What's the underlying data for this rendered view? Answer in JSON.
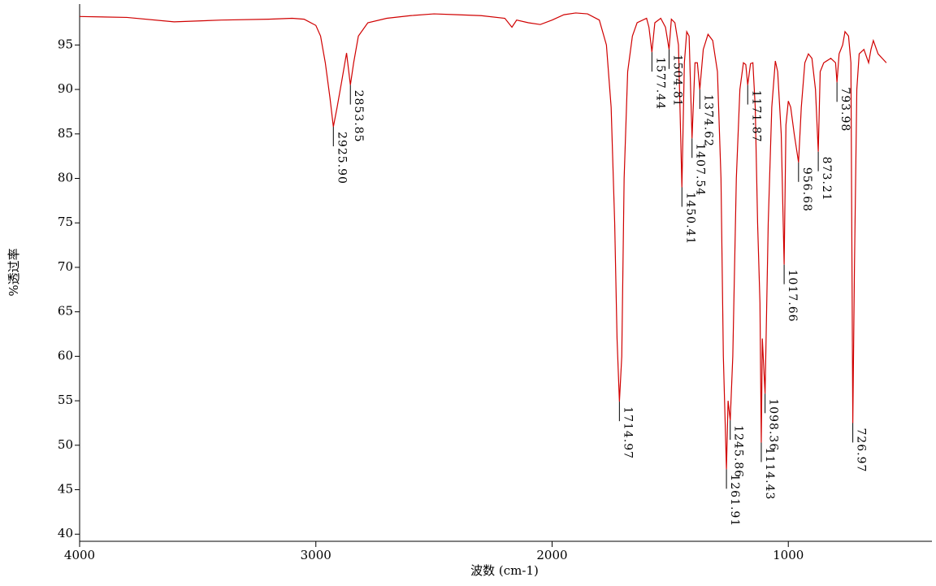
{
  "chart_data": {
    "type": "line",
    "xlabel": "波数 (cm-1)",
    "ylabel": "%透过率",
    "xlim": [
      4000,
      392
    ],
    "ylim": [
      39.2,
      99.6
    ],
    "xticks": [
      4000,
      3000,
      2000,
      1000
    ],
    "yticks": [
      40,
      45,
      50,
      55,
      60,
      65,
      70,
      75,
      80,
      85,
      90,
      95
    ],
    "color": "#d00000",
    "x": [
      4000,
      3800,
      3600,
      3400,
      3200,
      3100,
      3050,
      3000,
      2980,
      2960,
      2940,
      2925.9,
      2910,
      2890,
      2870,
      2853.85,
      2840,
      2820,
      2780,
      2700,
      2600,
      2500,
      2400,
      2300,
      2200,
      2170,
      2150,
      2100,
      2050,
      2000,
      1950,
      1900,
      1850,
      1800,
      1770,
      1750,
      1735,
      1725,
      1714.97,
      1705,
      1695,
      1680,
      1660,
      1640,
      1600,
      1590,
      1577.44,
      1565,
      1540,
      1520,
      1504.81,
      1495,
      1480,
      1465,
      1450.41,
      1440,
      1430,
      1420,
      1407.54,
      1395,
      1385,
      1374.62,
      1360,
      1340,
      1320,
      1300,
      1285,
      1275,
      1261.91,
      1255,
      1245.86,
      1235,
      1220,
      1205,
      1190,
      1180,
      1171.87,
      1160,
      1150,
      1140,
      1130,
      1120,
      1114.43,
      1110,
      1098.36,
      1085,
      1070,
      1055,
      1045,
      1030,
      1017.66,
      1010,
      1000,
      990,
      975,
      956.68,
      945,
      930,
      915,
      900,
      885,
      873.21,
      865,
      850,
      820,
      800,
      793.98,
      785,
      770,
      760,
      745,
      735,
      726.97,
      720,
      710,
      700,
      680,
      660,
      650,
      640,
      620,
      585
    ],
    "values": [
      98.2,
      98.1,
      97.6,
      97.8,
      97.9,
      98.0,
      97.9,
      97.2,
      96.0,
      93,
      89,
      85.8,
      88,
      91,
      94.1,
      90.5,
      93,
      96,
      97.5,
      98.0,
      98.3,
      98.5,
      98.4,
      98.3,
      98.0,
      97.0,
      97.8,
      97.5,
      97.3,
      97.8,
      98.4,
      98.6,
      98.5,
      97.8,
      95,
      88,
      75,
      62,
      54.9,
      60,
      80,
      92,
      96,
      97.5,
      98.0,
      97,
      94.2,
      97.5,
      98.0,
      97,
      94.5,
      97.9,
      97.5,
      95,
      79.0,
      93,
      96.5,
      96,
      84.5,
      93,
      93,
      90,
      94.5,
      96.2,
      95.5,
      92,
      80,
      60,
      47.3,
      55,
      52.8,
      60,
      80,
      90,
      93,
      92.8,
      90.5,
      92.9,
      93,
      88,
      75,
      66,
      50.3,
      62,
      55.8,
      75,
      88,
      93.2,
      92,
      85,
      70.3,
      86,
      88.7,
      88,
      85,
      81.8,
      88,
      93,
      94,
      93.5,
      90,
      83.0,
      92,
      93,
      93.5,
      93,
      90.8,
      94,
      95,
      96.5,
      96,
      93,
      52.5,
      70,
      90,
      94,
      94.5,
      93,
      94.5,
      95.5,
      94,
      93.0
    ],
    "peaks": [
      {
        "x": 2925.9,
        "y": 85.8,
        "label": "2925.90"
      },
      {
        "x": 2853.85,
        "y": 90.5,
        "label": "2853.85"
      },
      {
        "x": 1714.97,
        "y": 54.9,
        "label": "1714.97"
      },
      {
        "x": 1577.44,
        "y": 94.2,
        "label": "1577.44"
      },
      {
        "x": 1504.81,
        "y": 94.5,
        "label": "1504.81"
      },
      {
        "x": 1450.41,
        "y": 79.0,
        "label": "1450.41"
      },
      {
        "x": 1407.54,
        "y": 84.5,
        "label": "1407.54"
      },
      {
        "x": 1374.62,
        "y": 90,
        "label": "1374.62"
      },
      {
        "x": 1261.91,
        "y": 47.3,
        "label": "1261.91"
      },
      {
        "x": 1245.86,
        "y": 52.8,
        "label": "1245.86"
      },
      {
        "x": 1171.87,
        "y": 90.5,
        "label": "1171.87"
      },
      {
        "x": 1114.43,
        "y": 50.3,
        "label": "1114.43"
      },
      {
        "x": 1098.36,
        "y": 55.8,
        "label": "1098.36"
      },
      {
        "x": 1017.66,
        "y": 70.3,
        "label": "1017.66"
      },
      {
        "x": 956.68,
        "y": 81.8,
        "label": "956.68"
      },
      {
        "x": 873.21,
        "y": 83.0,
        "label": "873.21"
      },
      {
        "x": 793.98,
        "y": 90.8,
        "label": "793.98"
      },
      {
        "x": 726.97,
        "y": 52.5,
        "label": "726.97"
      }
    ]
  }
}
